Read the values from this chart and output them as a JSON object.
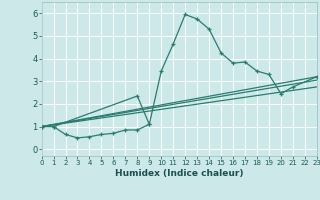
{
  "xlabel": "Humidex (Indice chaleur)",
  "xlim": [
    0,
    23
  ],
  "ylim": [
    -0.3,
    6.5
  ],
  "xticks": [
    0,
    1,
    2,
    3,
    4,
    5,
    6,
    7,
    8,
    9,
    10,
    11,
    12,
    13,
    14,
    15,
    16,
    17,
    18,
    19,
    20,
    21,
    22,
    23
  ],
  "yticks": [
    0,
    1,
    2,
    3,
    4,
    5,
    6
  ],
  "bg_color": "#cce8e8",
  "grid_color": "#ffffff",
  "line_color": "#2a7d6e",
  "line1_x": [
    0,
    1,
    2,
    3,
    4,
    5,
    6,
    7,
    8,
    9,
    10,
    11,
    12,
    13,
    14,
    15,
    16,
    17,
    18,
    19,
    20,
    21,
    23
  ],
  "line1_y": [
    1.0,
    1.0,
    0.65,
    0.5,
    0.55,
    0.65,
    0.7,
    0.85,
    0.85,
    1.1,
    3.45,
    4.65,
    5.95,
    5.75,
    5.3,
    4.25,
    3.8,
    3.85,
    3.45,
    3.3,
    2.45,
    2.75,
    3.2
  ],
  "line2_x": [
    0,
    1,
    8,
    9
  ],
  "line2_y": [
    1.0,
    1.0,
    2.35,
    1.1
  ],
  "line3_x": [
    0,
    23
  ],
  "line3_y": [
    1.0,
    3.2
  ],
  "line4_x": [
    0,
    23
  ],
  "line4_y": [
    1.0,
    2.75
  ],
  "line5_x": [
    0,
    23
  ],
  "line5_y": [
    1.0,
    3.05
  ]
}
